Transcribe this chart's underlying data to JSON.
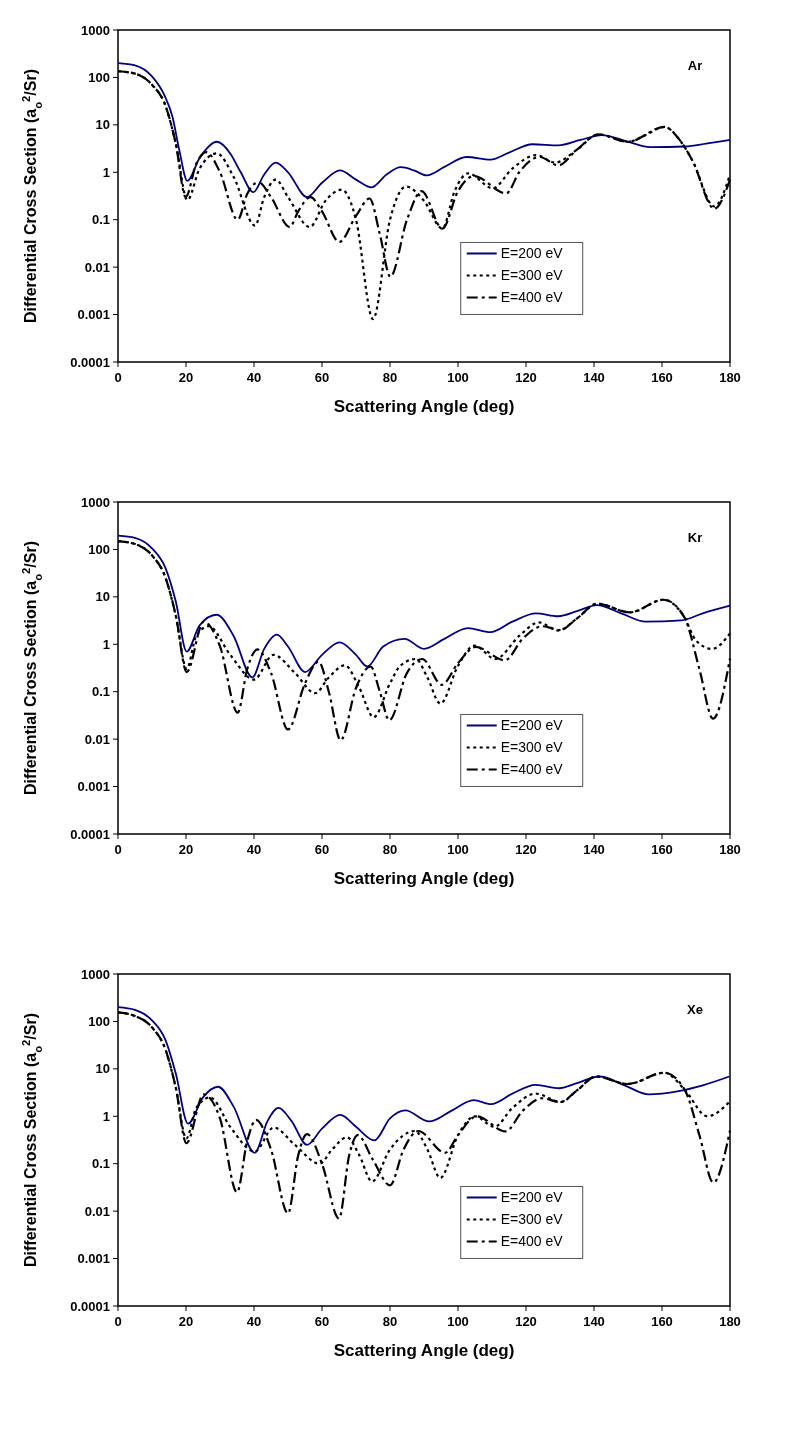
{
  "chart_data": [
    {
      "type": "line",
      "xlabel": "Scattering Angle (deg)",
      "ylabel": "Differential Cross Section (a$_{o}$$^{2}$/Sr)",
      "annotations": [
        "Ar"
      ],
      "log": true,
      "grid": false,
      "legend": "right",
      "xlim": [
        0,
        180
      ],
      "xticks": [
        0,
        20,
        40,
        60,
        80,
        100,
        120,
        140,
        160,
        180
      ],
      "ylim": [
        0.0001,
        1000
      ],
      "yticks": [
        0.0001,
        0.001,
        0.01,
        0.1,
        1,
        10,
        100,
        1000
      ],
      "series": [
        {
          "name": "E=200 eV",
          "color": "#000080",
          "line_style": "solid",
          "x": [
            0,
            5,
            10,
            13.8,
            16,
            18,
            20.4,
            24,
            29.1,
            33,
            36.1,
            39.8,
            43,
            46.4,
            50,
            55.6,
            60,
            65.3,
            70,
            74.5,
            79,
            83.2,
            87,
            90.8,
            96,
            102.5,
            109.6,
            115,
            121.9,
            129.5,
            136,
            142.3,
            150,
            156.6,
            166.8,
            173,
            180
          ],
          "values": [
            200,
            180,
            105,
            40,
            15,
            3,
            0.66,
            2,
            4.4,
            2.5,
            1,
            0.38,
            0.9,
            1.6,
            1,
            0.3,
            0.6,
            1.1,
            0.7,
            0.48,
            0.9,
            1.28,
            1.1,
            0.86,
            1.3,
            2.1,
            1.85,
            2.6,
            3.9,
            3.7,
            4.8,
            6.1,
            4.4,
            3.4,
            3.5,
            4,
            4.8
          ]
        },
        {
          "name": "E=300 eV",
          "color": "#000000",
          "line_style": "dotted",
          "x": [
            0,
            5,
            10,
            14,
            17,
            20.4,
            24,
            29.1,
            34,
            40.3,
            43,
            46.4,
            50,
            56.4,
            61,
            65.8,
            70,
            75,
            80,
            84.7,
            90,
            95.4,
            99,
            103,
            110.2,
            116,
            123,
            128.6,
            135,
            141.3,
            150,
            155,
            160.7,
            165,
            168.9,
            175.4,
            180
          ],
          "values": [
            135,
            120,
            70,
            25,
            4,
            0.26,
            1.2,
            2.5,
            0.8,
            0.075,
            0.3,
            0.7,
            0.3,
            0.07,
            0.25,
            0.43,
            0.1,
            0.0008,
            0.1,
            0.5,
            0.25,
            0.065,
            0.4,
            0.95,
            0.46,
            1.2,
            2.3,
            1.6,
            3,
            6.3,
            4.4,
            6,
            9.1,
            5,
            1.8,
            0.19,
            0.9
          ]
        },
        {
          "name": "E=400 eV",
          "color": "#000000",
          "line_style": "dashed",
          "x": [
            0,
            5,
            10,
            14,
            17,
            19.9,
            23,
            26,
            30,
            35.2,
            38,
            41.3,
            45,
            50.5,
            53,
            56.6,
            60,
            65.1,
            70,
            74,
            77,
            80.1,
            85,
            89.3,
            95.4,
            100,
            104.6,
            114.2,
            118,
            124,
            129.5,
            135,
            141.3,
            150,
            160.7,
            165,
            168.9,
            175.4,
            180
          ],
          "values": [
            135,
            120,
            70,
            25,
            4,
            0.3,
            1.5,
            2.65,
            1,
            0.1,
            0.35,
            0.62,
            0.3,
            0.07,
            0.15,
            0.3,
            0.15,
            0.034,
            0.12,
            0.28,
            0.05,
            0.0063,
            0.1,
            0.4,
            0.065,
            0.4,
            0.83,
            0.36,
            1,
            2.1,
            1.4,
            3,
            6.3,
            4.4,
            9.1,
            5,
            1.8,
            0.17,
            0.7
          ]
        }
      ]
    },
    {
      "type": "line",
      "xlabel": "Scattering Angle (deg)",
      "ylabel": "Differential Cross Section (a$_{o}$$^{2}$/Sr)",
      "annotations": [
        "Kr"
      ],
      "log": true,
      "grid": false,
      "legend": "right",
      "xlim": [
        0,
        180
      ],
      "xticks": [
        0,
        20,
        40,
        60,
        80,
        100,
        120,
        140,
        160,
        180
      ],
      "ylim": [
        0.0001,
        1000
      ],
      "yticks": [
        0.0001,
        0.001,
        0.01,
        0.1,
        1,
        10,
        100,
        1000
      ],
      "series": [
        {
          "name": "E=200 eV",
          "color": "#000080",
          "line_style": "solid",
          "x": [
            0,
            5,
            10,
            14,
            17,
            20.2,
            24,
            29,
            34,
            39.5,
            43,
            46.7,
            50,
            55,
            60,
            65.2,
            70,
            73.3,
            78,
            84.3,
            90,
            96,
            102.9,
            109.5,
            116,
            122.9,
            129.5,
            135,
            140.9,
            148,
            155.2,
            165.7,
            172,
            180
          ],
          "values": [
            195,
            175,
            105,
            40,
            8,
            0.7,
            2.5,
            4.2,
            1.5,
            0.2,
            0.8,
            1.6,
            0.9,
            0.26,
            0.6,
            1.1,
            0.6,
            0.34,
            0.9,
            1.3,
            0.8,
            1.3,
            2.2,
            1.8,
            3,
            4.5,
            3.9,
            5,
            6.7,
            4.5,
            3,
            3.2,
            4.5,
            6.5
          ]
        },
        {
          "name": "E=300 eV",
          "color": "#000000",
          "line_style": "dotted",
          "x": [
            0,
            5,
            10,
            14,
            17,
            20.2,
            23,
            26.7,
            33,
            40,
            45.7,
            52,
            58,
            62,
            66.7,
            71,
            75.2,
            80,
            83,
            87.6,
            91,
            94.8,
            100,
            104.8,
            111,
            118,
            123.8,
            129.5,
            135,
            141,
            150.5,
            160.5,
            166.6,
            170,
            174.7,
            180
          ],
          "values": [
            150,
            130,
            75,
            25,
            4,
            0.3,
            1.5,
            2.4,
            0.6,
            0.18,
            0.6,
            0.25,
            0.093,
            0.2,
            0.36,
            0.12,
            0.029,
            0.15,
            0.35,
            0.49,
            0.2,
            0.056,
            0.35,
            0.94,
            0.49,
            1.5,
            2.9,
            1.95,
            3.5,
            7.2,
            4.7,
            8.7,
            3.7,
            1.2,
            0.8,
            1.7
          ]
        },
        {
          "name": "E=400 eV",
          "color": "#000000",
          "line_style": "dashed",
          "x": [
            0,
            5,
            10,
            14,
            17,
            20.2,
            25.2,
            30,
            35.2,
            38,
            41,
            45,
            50,
            55,
            59,
            62,
            65.5,
            70,
            74.3,
            77,
            79.8,
            85,
            89.5,
            95.2,
            100,
            105.2,
            113.8,
            119,
            124.8,
            130,
            135,
            141,
            150.5,
            160.5,
            166.6,
            171,
            175,
            180
          ],
          "values": [
            150,
            130,
            75,
            25,
            4,
            0.26,
            3,
            0.9,
            0.036,
            0.3,
            0.78,
            0.25,
            0.016,
            0.15,
            0.43,
            0.1,
            0.0095,
            0.12,
            0.34,
            0.1,
            0.025,
            0.25,
            0.49,
            0.14,
            0.4,
            0.88,
            0.46,
            1.3,
            2.4,
            2,
            3.5,
            7.2,
            4.7,
            8.7,
            3.7,
            0.3,
            0.027,
            0.5
          ]
        }
      ]
    },
    {
      "type": "line",
      "xlabel": "Scattering Angle (deg)",
      "ylabel": "Differential Cross Section (a$_{o}$$^{2}$/Sr)",
      "annotations": [
        "Xe"
      ],
      "log": true,
      "grid": false,
      "legend": "right",
      "xlim": [
        0,
        180
      ],
      "xticks": [
        0,
        20,
        40,
        60,
        80,
        100,
        120,
        140,
        160,
        180
      ],
      "ylim": [
        0.0001,
        1000
      ],
      "yticks": [
        0.0001,
        0.001,
        0.01,
        0.1,
        1,
        10,
        100,
        1000
      ],
      "series": [
        {
          "name": "E=200 eV",
          "color": "#000080",
          "line_style": "solid",
          "x": [
            0,
            5,
            10,
            14,
            17,
            20.6,
            25,
            29.4,
            34,
            40.2,
            44,
            47.2,
            51,
            55.6,
            60,
            65.4,
            70,
            75.4,
            80,
            84.5,
            91.5,
            98,
            104.6,
            109.7,
            116,
            122.8,
            129.8,
            135,
            141.5,
            149,
            156,
            164.9,
            172,
            179.8
          ],
          "values": [
            200,
            175,
            105,
            40,
            8,
            0.7,
            2.5,
            4.2,
            1.6,
            0.17,
            0.8,
            1.5,
            0.8,
            0.25,
            0.55,
            1.07,
            0.6,
            0.31,
            0.9,
            1.33,
            0.78,
            1.3,
            2.2,
            1.8,
            3,
            4.6,
            3.9,
            5,
            6.9,
            4.5,
            2.9,
            3.4,
            4.5,
            6.9
          ]
        },
        {
          "name": "E=300 eV",
          "color": "#000000",
          "line_style": "dotted",
          "x": [
            0,
            5,
            10,
            14,
            17,
            20.1,
            23,
            27.1,
            33,
            40.2,
            45.8,
            52,
            59.3,
            63,
            67.3,
            71,
            74.7,
            80,
            87.3,
            91,
            94.8,
            100,
            105,
            110.7,
            116,
            122.8,
            130.3,
            135,
            140.6,
            149.9,
            160.7,
            166.7,
            173.3,
            179.8
          ],
          "values": [
            155,
            130,
            75,
            25,
            4,
            0.34,
            1.5,
            2.5,
            0.6,
            0.18,
            0.58,
            0.25,
            0.1,
            0.2,
            0.36,
            0.15,
            0.042,
            0.2,
            0.49,
            0.2,
            0.05,
            0.4,
            1,
            0.6,
            1.5,
            3,
            2,
            3.5,
            6.9,
            4.8,
            8.3,
            3.6,
            1,
            2
          ]
        },
        {
          "name": "E=400 eV",
          "color": "#000000",
          "line_style": "dashed",
          "x": [
            0,
            5,
            10,
            14,
            17,
            20.1,
            25.2,
            30,
            35,
            38,
            40.6,
            45,
            50,
            53,
            55.6,
            60,
            65,
            68,
            70.5,
            75,
            80,
            84,
            88.3,
            96.2,
            100,
            105.5,
            114,
            119,
            124.7,
            130,
            135,
            140.6,
            149.9,
            160.7,
            166.7,
            171,
            175.1,
            180
          ],
          "values": [
            155,
            130,
            75,
            25,
            4,
            0.27,
            2.9,
            0.9,
            0.025,
            0.3,
            0.84,
            0.2,
            0.009,
            0.15,
            0.42,
            0.1,
            0.007,
            0.15,
            0.4,
            0.12,
            0.035,
            0.2,
            0.49,
            0.17,
            0.4,
            1,
            0.48,
            1.3,
            2.4,
            2,
            3.5,
            6.9,
            4.8,
            8.3,
            3.6,
            0.4,
            0.04,
            0.5
          ]
        }
      ]
    }
  ]
}
